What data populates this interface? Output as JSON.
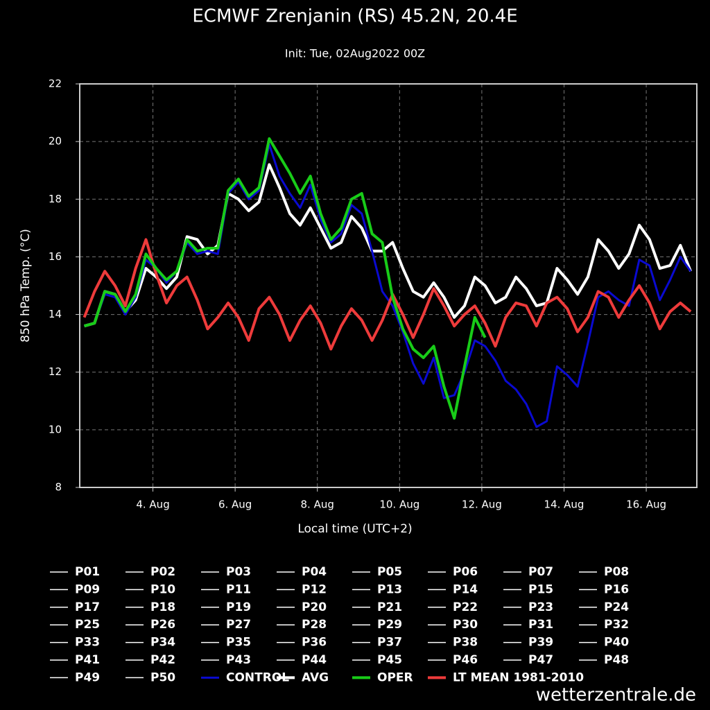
{
  "chart_data": {
    "type": "line",
    "title": "ECMWF Zrenjanin (RS) 45.2N, 20.4E",
    "subtitle": "Init: Tue, 02Aug2022 00Z",
    "y_label": "850 hPa Temp. (°C)",
    "x_label": "Local time (UTC+2)",
    "watermark": "wetterzentrale.de",
    "grid": true,
    "legend": "bottom",
    "xlim": [
      2.22,
      17.23
    ],
    "xticks": [
      {
        "value": 4,
        "label": "4. Aug"
      },
      {
        "value": 6,
        "label": "6. Aug"
      },
      {
        "value": 8,
        "label": "8. Aug"
      },
      {
        "value": 10,
        "label": "10. Aug"
      },
      {
        "value": 12,
        "label": "12. Aug"
      },
      {
        "value": 14,
        "label": "14. Aug"
      },
      {
        "value": 16,
        "label": "16. Aug"
      }
    ],
    "ylim": [
      8,
      22
    ],
    "yticks": [
      8,
      10,
      12,
      14,
      16,
      18,
      20,
      22
    ],
    "x": [
      2.33,
      2.58,
      2.83,
      3.08,
      3.33,
      3.58,
      3.83,
      4.08,
      4.33,
      4.58,
      4.83,
      5.08,
      5.33,
      5.58,
      5.83,
      6.08,
      6.33,
      6.58,
      6.83,
      7.08,
      7.33,
      7.58,
      7.83,
      8.08,
      8.33,
      8.58,
      8.83,
      9.08,
      9.33,
      9.58,
      9.83,
      10.08,
      10.33,
      10.58,
      10.83,
      11.08,
      11.33,
      11.58,
      11.83,
      12.08,
      12.33,
      12.58,
      12.83,
      13.08,
      13.33,
      13.58,
      13.83,
      14.08,
      14.33,
      14.58,
      14.83,
      15.08,
      15.33,
      15.58,
      15.83,
      16.08,
      16.33,
      16.58,
      16.83,
      17.08
    ],
    "members": [
      {
        "name": "P01",
        "color": "#ffffff"
      },
      {
        "name": "P02",
        "color": "#ffffff"
      },
      {
        "name": "P03",
        "color": "#ffffff"
      },
      {
        "name": "P04",
        "color": "#ffffff"
      },
      {
        "name": "P05",
        "color": "#ffffff"
      },
      {
        "name": "P06",
        "color": "#ffffff"
      },
      {
        "name": "P07",
        "color": "#ffffff"
      },
      {
        "name": "P08",
        "color": "#ffffff"
      },
      {
        "name": "P09",
        "color": "#ffffff"
      },
      {
        "name": "P10",
        "color": "#ffffff"
      },
      {
        "name": "P11",
        "color": "#ffffff"
      },
      {
        "name": "P12",
        "color": "#ffffff"
      },
      {
        "name": "P13",
        "color": "#ffffff"
      },
      {
        "name": "P14",
        "color": "#ffffff"
      },
      {
        "name": "P15",
        "color": "#ffffff"
      },
      {
        "name": "P16",
        "color": "#ffffff"
      },
      {
        "name": "P17",
        "color": "#ffffff"
      },
      {
        "name": "P18",
        "color": "#ffffff"
      },
      {
        "name": "P19",
        "color": "#ffffff"
      },
      {
        "name": "P20",
        "color": "#ffffff"
      },
      {
        "name": "P21",
        "color": "#ffffff"
      },
      {
        "name": "P22",
        "color": "#ffffff"
      },
      {
        "name": "P23",
        "color": "#ffffff"
      },
      {
        "name": "P24",
        "color": "#ffffff"
      },
      {
        "name": "P25",
        "color": "#ffffff"
      },
      {
        "name": "P26",
        "color": "#ffffff"
      },
      {
        "name": "P27",
        "color": "#ffffff"
      },
      {
        "name": "P28",
        "color": "#ffffff"
      },
      {
        "name": "P29",
        "color": "#ffffff"
      },
      {
        "name": "P30",
        "color": "#ffffff"
      },
      {
        "name": "P31",
        "color": "#ffffff"
      },
      {
        "name": "P32",
        "color": "#ffffff"
      },
      {
        "name": "P33",
        "color": "#ffffff"
      },
      {
        "name": "P34",
        "color": "#ffffff"
      },
      {
        "name": "P35",
        "color": "#ffffff"
      },
      {
        "name": "P36",
        "color": "#ffffff"
      },
      {
        "name": "P37",
        "color": "#ffffff"
      },
      {
        "name": "P38",
        "color": "#ffffff"
      },
      {
        "name": "P39",
        "color": "#ffffff"
      },
      {
        "name": "P40",
        "color": "#ffffff"
      },
      {
        "name": "P41",
        "color": "#ffffff"
      },
      {
        "name": "P42",
        "color": "#ffffff"
      },
      {
        "name": "P43",
        "color": "#ffffff"
      },
      {
        "name": "P44",
        "color": "#ffffff"
      },
      {
        "name": "P45",
        "color": "#ffffff"
      },
      {
        "name": "P46",
        "color": "#ffffff"
      },
      {
        "name": "P47",
        "color": "#ffffff"
      },
      {
        "name": "P48",
        "color": "#ffffff"
      },
      {
        "name": "P49",
        "color": "#ffffff"
      },
      {
        "name": "P50",
        "color": "#ffffff"
      }
    ],
    "series": [
      {
        "name": "CONTROL",
        "color": "#0a0ad0",
        "values": [
          13.6,
          13.7,
          14.7,
          14.6,
          14.0,
          14.6,
          15.9,
          15.6,
          15.1,
          15.5,
          16.5,
          16.1,
          16.2,
          16.1,
          18.2,
          18.6,
          18.0,
          18.3,
          19.9,
          18.8,
          18.2,
          17.7,
          18.5,
          17.3,
          16.5,
          16.8,
          17.8,
          17.5,
          16.2,
          14.8,
          14.3,
          13.4,
          12.3,
          11.6,
          12.5,
          11.1,
          11.2,
          12.0,
          13.1,
          12.9,
          12.4,
          11.7,
          11.4,
          10.9,
          10.1,
          10.3,
          12.2,
          11.9,
          11.5,
          13.0,
          14.6,
          14.8,
          14.5,
          14.3,
          15.9,
          15.7,
          14.5,
          15.2,
          16.0,
          15.5
        ]
      },
      {
        "name": "AVG",
        "color": "#ffffff",
        "values": [
          13.6,
          13.7,
          14.8,
          14.7,
          14.1,
          14.5,
          15.6,
          15.3,
          14.9,
          15.3,
          16.7,
          16.6,
          16.1,
          16.4,
          18.2,
          18.0,
          17.6,
          17.9,
          19.2,
          18.4,
          17.5,
          17.1,
          17.7,
          17.0,
          16.3,
          16.5,
          17.4,
          17.0,
          16.2,
          16.2,
          16.5,
          15.6,
          14.8,
          14.6,
          15.1,
          14.6,
          13.9,
          14.3,
          15.3,
          15.0,
          14.4,
          14.6,
          15.3,
          14.9,
          14.3,
          14.4,
          15.6,
          15.2,
          14.7,
          15.3,
          16.6,
          16.2,
          15.6,
          16.1,
          17.1,
          16.6,
          15.6,
          15.7,
          16.4,
          15.5
        ]
      },
      {
        "name": "OPER",
        "color": "#18cc18",
        "values": [
          13.6,
          13.7,
          14.8,
          14.7,
          14.1,
          14.7,
          16.1,
          15.6,
          15.2,
          15.5,
          16.6,
          16.2,
          16.3,
          16.3,
          18.3,
          18.7,
          18.1,
          18.4,
          20.1,
          19.5,
          18.9,
          18.2,
          18.8,
          17.5,
          16.6,
          17.0,
          18.0,
          18.2,
          16.8,
          16.5,
          14.6,
          13.5,
          12.8,
          12.5,
          12.9,
          11.5,
          10.4,
          12.2,
          13.9,
          13.2,
          null,
          null,
          null,
          null,
          null,
          null,
          null,
          null,
          null,
          null,
          null,
          null,
          null,
          null,
          null,
          null,
          null,
          null,
          null,
          null
        ]
      },
      {
        "name": "LT MEAN 1981-2010",
        "color": "#ee3b3b",
        "values": [
          13.9,
          14.8,
          15.5,
          15.0,
          14.3,
          15.6,
          16.6,
          15.4,
          14.4,
          15.0,
          15.3,
          14.5,
          13.5,
          13.9,
          14.4,
          13.9,
          13.1,
          14.2,
          14.6,
          14.0,
          13.1,
          13.8,
          14.3,
          13.7,
          12.8,
          13.6,
          14.2,
          13.8,
          13.1,
          13.8,
          14.7,
          14.0,
          13.2,
          14.0,
          14.9,
          14.3,
          13.6,
          14.0,
          14.3,
          13.7,
          12.9,
          13.9,
          14.4,
          14.3,
          13.6,
          14.4,
          14.6,
          14.2,
          13.4,
          13.9,
          14.8,
          14.6,
          13.9,
          14.5,
          15.0,
          14.4,
          13.5,
          14.1,
          14.4,
          14.1
        ]
      }
    ]
  }
}
